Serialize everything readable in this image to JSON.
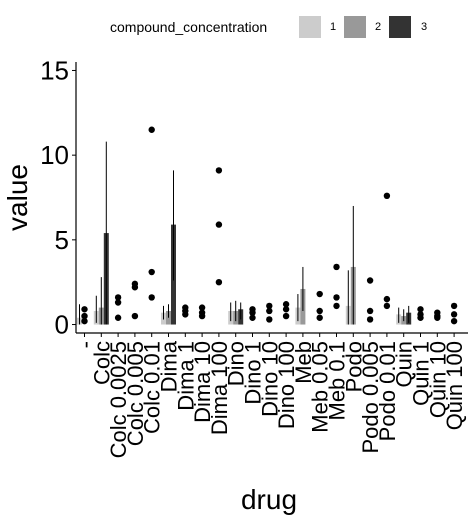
{
  "chart_data": {
    "type": "bar",
    "xlabel": "drug",
    "ylabel": "value",
    "ylim": [
      -0.5,
      15.5
    ],
    "yticks": [
      0,
      5,
      10,
      15
    ],
    "legend": {
      "title": "compound_concentration",
      "position": "top",
      "entries": [
        {
          "label": "1",
          "color": "#cccccc"
        },
        {
          "label": "2",
          "color": "#999999"
        },
        {
          "label": "3",
          "color": "#333333"
        }
      ]
    },
    "categories": [
      "-",
      "Colc",
      "Colc 0.0025",
      "Colc 0.005",
      "Colc 0.01",
      "Dima",
      "Dima 1",
      "Dima 10",
      "Dima 100",
      "Dino",
      "Dino 1",
      "Dino 10",
      "Dino 100",
      "Meb",
      "Meb 0.05",
      "Meb 0.1",
      "Podo",
      "Podo 0.005",
      "Podo 0.01",
      "Quin",
      "Quin 1",
      "Quin 10",
      "Quin 100"
    ],
    "series": [
      {
        "name": "1",
        "values": [
          0.4,
          0.8,
          null,
          null,
          null,
          0.7,
          null,
          null,
          null,
          0.8,
          null,
          null,
          null,
          1.0,
          null,
          null,
          1.1,
          null,
          null,
          0.6,
          null,
          null,
          null
        ],
        "error": [
          [
            0.0,
            1.2
          ],
          [
            0.1,
            1.7
          ],
          null,
          null,
          null,
          [
            0.3,
            1.1
          ],
          null,
          null,
          null,
          [
            0.2,
            1.3
          ],
          null,
          null,
          null,
          [
            0.2,
            1.8
          ],
          null,
          null,
          [
            0.0,
            3.2
          ],
          null,
          null,
          [
            0.1,
            1.0
          ],
          null,
          null,
          null
        ]
      },
      {
        "name": "2",
        "values": [
          null,
          1.0,
          null,
          null,
          null,
          0.8,
          null,
          null,
          null,
          0.8,
          null,
          null,
          null,
          2.1,
          null,
          null,
          3.4,
          null,
          null,
          0.5,
          null,
          null,
          null
        ],
        "error": [
          null,
          [
            0.0,
            2.8
          ],
          null,
          null,
          null,
          [
            0.4,
            1.2
          ],
          null,
          null,
          null,
          [
            0.2,
            1.4
          ],
          null,
          null,
          null,
          [
            0.8,
            3.4
          ],
          null,
          null,
          [
            0.0,
            7.0
          ],
          null,
          null,
          [
            0.2,
            0.9
          ],
          null,
          null,
          null
        ]
      },
      {
        "name": "3",
        "values": [
          null,
          5.4,
          null,
          null,
          null,
          5.9,
          null,
          null,
          null,
          0.9,
          null,
          null,
          null,
          null,
          null,
          null,
          null,
          null,
          null,
          0.7,
          null,
          null,
          null
        ],
        "error": [
          null,
          [
            0.0,
            10.8
          ],
          null,
          null,
          null,
          [
            2.6,
            9.1
          ],
          null,
          null,
          null,
          [
            0.3,
            1.3
          ],
          null,
          null,
          null,
          null,
          null,
          null,
          null,
          null,
          null,
          [
            0.1,
            1.1
          ],
          null,
          null,
          null
        ]
      }
    ],
    "points": [
      {
        "category": "-",
        "y": [
          0.2,
          0.5,
          0.9
        ]
      },
      {
        "category": "Colc 0.0025",
        "y": [
          0.4,
          1.3,
          1.6
        ]
      },
      {
        "category": "Colc 0.005",
        "y": [
          0.5,
          2.2,
          2.4
        ]
      },
      {
        "category": "Colc 0.01",
        "y": [
          1.6,
          3.1,
          11.5
        ]
      },
      {
        "category": "Dima 1",
        "y": [
          0.6,
          0.8,
          1.0
        ]
      },
      {
        "category": "Dima 10",
        "y": [
          0.5,
          0.7,
          1.0
        ]
      },
      {
        "category": "Dima 100",
        "y": [
          2.5,
          5.9,
          9.1
        ]
      },
      {
        "category": "Dino 1",
        "y": [
          0.4,
          0.7,
          0.9
        ]
      },
      {
        "category": "Dino 10",
        "y": [
          0.3,
          0.8,
          1.1
        ]
      },
      {
        "category": "Dino 100",
        "y": [
          0.5,
          0.9,
          1.2
        ]
      },
      {
        "category": "Meb 0.05",
        "y": [
          0.4,
          0.8,
          1.8
        ]
      },
      {
        "category": "Meb 0.1",
        "y": [
          1.1,
          1.6,
          3.4
        ]
      },
      {
        "category": "Podo 0.005",
        "y": [
          0.3,
          0.8,
          2.6
        ]
      },
      {
        "category": "Podo 0.01",
        "y": [
          1.1,
          1.5,
          7.6
        ]
      },
      {
        "category": "Quin 1",
        "y": [
          0.4,
          0.6,
          0.9
        ]
      },
      {
        "category": "Quin 10",
        "y": [
          0.4,
          0.5,
          0.7
        ]
      },
      {
        "category": "Quin 100",
        "y": [
          0.2,
          0.6,
          1.1
        ]
      }
    ]
  }
}
